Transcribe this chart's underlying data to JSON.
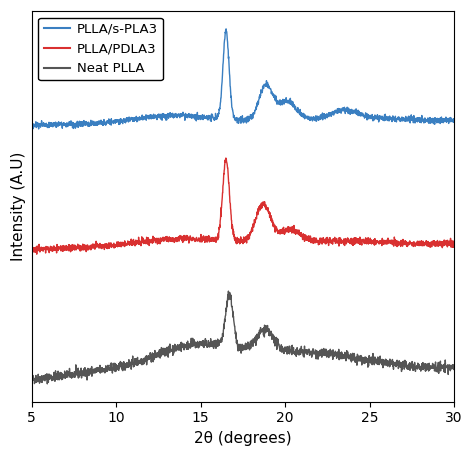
{
  "xlabel": "2θ (degrees)",
  "ylabel": "Intensity (A.U)",
  "xlim": [
    5,
    30
  ],
  "xticks": [
    5,
    10,
    15,
    20,
    25,
    30
  ],
  "legend_labels": [
    "PLLA/s-PLA3",
    "PLLA/PDLA3",
    "Neat PLLA"
  ],
  "colors": [
    "#3a7fc1",
    "#d93030",
    "#555555"
  ],
  "line_width": 1.0,
  "background_color": "#ffffff",
  "offsets": [
    0.65,
    0.33,
    0.0
  ],
  "seed": 42
}
